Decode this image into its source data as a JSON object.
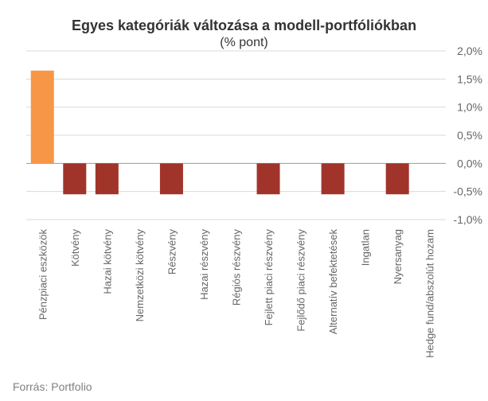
{
  "chart_data": {
    "type": "bar",
    "title": "Egyes kategóriák változása a modell-portfóliókban",
    "subtitle": "(% pont)",
    "categories": [
      "Pénzpiaci eszközök",
      "Kötvény",
      "Hazai kötvény",
      "Nemzetközi kötvény",
      "Részvény",
      "Hazai részvény",
      "Régiós részvény",
      "Fejlett piaci részvény",
      "Fejlődő piaci részvény",
      "Alternatív befektetések",
      "Ingatlan",
      "Nyersanyag",
      "Hedge fund/abszolút hozam"
    ],
    "values": [
      1.65,
      -0.55,
      -0.55,
      0,
      -0.55,
      0,
      0,
      -0.55,
      0,
      -0.55,
      0,
      -0.55,
      0
    ],
    "colors": {
      "positive": "#f79646",
      "negative": "#a1342a"
    },
    "ylim": [
      -1.0,
      2.0
    ],
    "yticks": [
      2.0,
      1.5,
      1.0,
      0.5,
      0.0,
      -0.5,
      -1.0
    ],
    "ytick_labels": [
      "2,0%",
      "1,5%",
      "1,0%",
      "0,5%",
      "0,0%",
      "-0,5%",
      "-1,0%"
    ],
    "y_axis_position": "right",
    "grid": true,
    "legend": "none"
  },
  "source": "Forrás: Portfolio"
}
